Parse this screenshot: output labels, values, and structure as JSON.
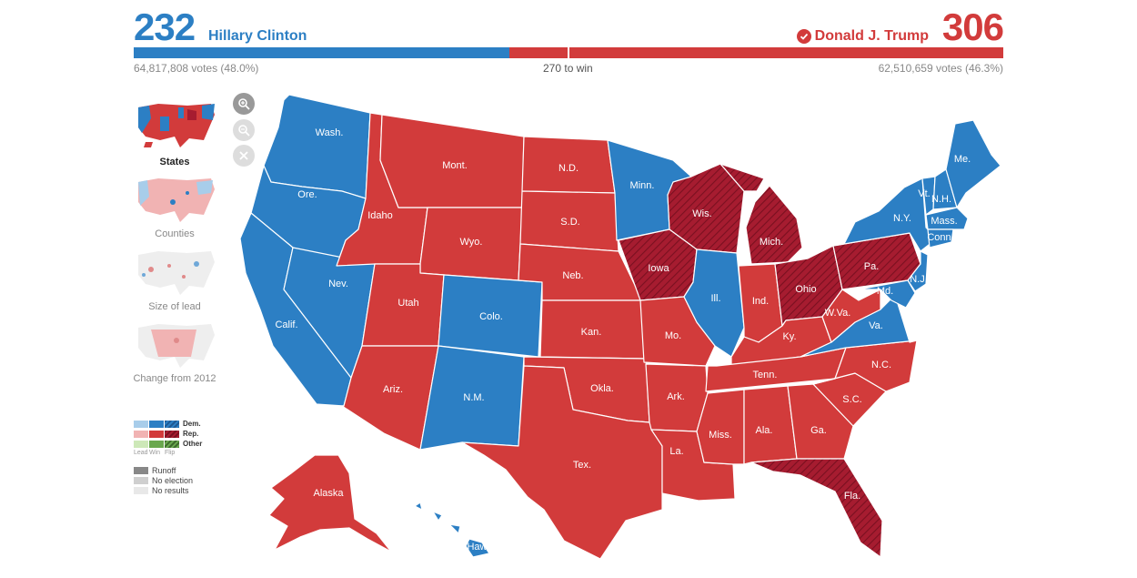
{
  "header": {
    "dem": {
      "electoral_votes": "232",
      "candidate": "Hillary Clinton",
      "popular_votes": "64,817,808 votes (48.0%)",
      "share": 0.4318
    },
    "rep": {
      "electoral_votes": "306",
      "candidate": "Donald J. Trump",
      "popular_votes": "62,510,659 votes (46.3%)",
      "winner_icon": "checkmark-circle-icon"
    },
    "to_win": "270 to win"
  },
  "colors": {
    "dem": "#2c7fc4",
    "dem_flip": "#1f5a93",
    "rep": "#d23b3b",
    "rep_flip": "#a61c30",
    "dem_lead": "#a8cdea",
    "rep_lead": "#f1b3b3"
  },
  "views": [
    {
      "label": "States",
      "selected": true
    },
    {
      "label": "Counties",
      "selected": false
    },
    {
      "label": "Size of lead",
      "selected": false
    },
    {
      "label": "Change from 2012",
      "selected": false
    }
  ],
  "zoom_controls": [
    "zoom-in-icon",
    "zoom-out-icon",
    "reset-icon"
  ],
  "legend": {
    "dem": "Dem.",
    "rep": "Rep.",
    "other": "Other",
    "lead": "Lead",
    "win": "Win",
    "flip": "Flip",
    "runoff": "Runoff",
    "no_election": "No election",
    "no_results": "No results"
  },
  "states": {
    "wa": "Wash.",
    "or": "Ore.",
    "ca": "Calif.",
    "nv": "Nev.",
    "id": "Idaho",
    "mt": "Mont.",
    "wy": "Wyo.",
    "ut": "Utah",
    "az": "Ariz.",
    "co": "Colo.",
    "nm": "N.M.",
    "nd": "N.D.",
    "sd": "S.D.",
    "ne": "Neb.",
    "ks": "Kan.",
    "ok": "Okla.",
    "tx": "Tex.",
    "mn": "Minn.",
    "ia": "Iowa",
    "mo": "Mo.",
    "ar": "Ark.",
    "la": "La.",
    "wi": "Wis.",
    "il": "Ill.",
    "mi": "Mich.",
    "in": "Ind.",
    "oh": "Ohio",
    "ky": "Ky.",
    "tn": "Tenn.",
    "ms": "Miss.",
    "al": "Ala.",
    "ga": "Ga.",
    "fl": "Fla.",
    "sc": "S.C.",
    "nc": "N.C.",
    "va": "Va.",
    "wv": "W.Va.",
    "pa": "Pa.",
    "ny": "N.Y.",
    "vt": "Vt.",
    "nh": "N.H.",
    "me": "Me.",
    "ma": "Mass.",
    "ct": "Conn.",
    "nj": "N.J.",
    "md": "Md.",
    "ak": "Alaska",
    "hi": "Hawaii"
  }
}
